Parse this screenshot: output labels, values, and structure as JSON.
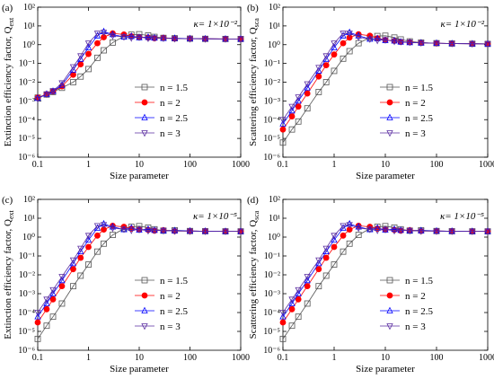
{
  "chart_data": [
    {
      "type": "line",
      "panel": "(a)",
      "annotation": "κ= 1×10⁻²",
      "xlabel": "Size parameter",
      "ylabel": "Extinction efficiency factor, Q",
      "ylabel_sub": "ext",
      "xlog": true,
      "ylog": true,
      "xlim": [
        0.1,
        1000
      ],
      "ylim": [
        1e-06,
        100
      ],
      "xticks": [
        0.1,
        1,
        10,
        100,
        1000
      ],
      "yticks": [
        {
          "value": 1e-06,
          "label": "10⁻⁶"
        },
        {
          "value": 1e-05,
          "label": "10⁻⁵"
        },
        {
          "value": 0.0001,
          "label": "10⁻⁴"
        },
        {
          "value": 0.001,
          "label": "10⁻³"
        },
        {
          "value": 0.01,
          "label": "10⁻²"
        },
        {
          "value": 0.1,
          "label": "10⁻¹"
        },
        {
          "value": 1,
          "label": "10⁰"
        },
        {
          "value": 10,
          "label": "10¹"
        },
        {
          "value": 100,
          "label": "10²"
        }
      ],
      "x": [
        0.1,
        0.15,
        0.2,
        0.3,
        0.5,
        0.7,
        1,
        1.5,
        2,
        3,
        5,
        7,
        10,
        15,
        20,
        30,
        50,
        100,
        200,
        500,
        1000
      ],
      "series": [
        {
          "name": "n = 1.5",
          "color": "#555555",
          "marker": "square",
          "values": [
            0.0015,
            0.0022,
            0.003,
            0.005,
            0.01,
            0.02,
            0.05,
            0.2,
            0.5,
            1.3,
            2.8,
            3.4,
            3.6,
            3.1,
            2.6,
            2.3,
            2.2,
            2.1,
            2.05,
            2.02,
            2.01
          ]
        },
        {
          "name": "n = 2",
          "color": "#ff0000",
          "marker": "circle",
          "values": [
            0.0015,
            0.0023,
            0.0032,
            0.006,
            0.025,
            0.09,
            0.32,
            1.2,
            2.5,
            4,
            3.5,
            2.8,
            2.5,
            2.4,
            2.2,
            2.3,
            2.1,
            2.1,
            2.05,
            2.02,
            2.01
          ]
        },
        {
          "name": "n = 2.5",
          "color": "#0000ff",
          "marker": "triangle-up",
          "values": [
            0.0014,
            0.0023,
            0.0033,
            0.007,
            0.045,
            0.17,
            0.7,
            3,
            5,
            3.5,
            2.6,
            2.8,
            2.4,
            2.5,
            2.3,
            2.2,
            2.2,
            2.1,
            2.05,
            2.02,
            2.01
          ]
        },
        {
          "name": "n = 3",
          "color": "#5a2ca0",
          "marker": "triangle-down",
          "values": [
            0.0013,
            0.0023,
            0.0035,
            0.009,
            0.065,
            0.25,
            1.2,
            4,
            4.5,
            3,
            2.6,
            2.3,
            2.5,
            2.2,
            2.3,
            2.2,
            2.1,
            2.05,
            2.03,
            2.02,
            2.01
          ]
        }
      ]
    },
    {
      "type": "line",
      "panel": "(b)",
      "annotation": "κ= 1×10⁻²",
      "xlabel": "Size parameter",
      "ylabel": "Scattering efficiency factor, Q",
      "ylabel_sub": "sca",
      "xlog": true,
      "ylog": true,
      "xlim": [
        0.1,
        1000
      ],
      "ylim": [
        1e-06,
        100
      ],
      "xticks": [
        0.1,
        1,
        10,
        100,
        1000
      ],
      "yticks": [
        {
          "value": 1e-06,
          "label": "10⁻⁶"
        },
        {
          "value": 1e-05,
          "label": "10⁻⁵"
        },
        {
          "value": 0.0001,
          "label": "10⁻⁴"
        },
        {
          "value": 0.001,
          "label": "10⁻³"
        },
        {
          "value": 0.01,
          "label": "10⁻²"
        },
        {
          "value": 0.1,
          "label": "10⁻¹"
        },
        {
          "value": 1,
          "label": "10⁰"
        },
        {
          "value": 10,
          "label": "10¹"
        },
        {
          "value": 100,
          "label": "10²"
        }
      ],
      "x": [
        0.1,
        0.15,
        0.2,
        0.3,
        0.5,
        0.7,
        1,
        1.5,
        2,
        3,
        5,
        7,
        10,
        15,
        20,
        30,
        50,
        100,
        200,
        500,
        1000
      ],
      "series": [
        {
          "name": "n = 1.5",
          "color": "#555555",
          "marker": "square",
          "values": [
            6e-06,
            3e-05,
            8e-05,
            0.0004,
            0.003,
            0.01,
            0.04,
            0.18,
            0.45,
            1.2,
            2.4,
            2.9,
            3,
            2.4,
            1.9,
            1.5,
            1.3,
            1.2,
            1.15,
            1.12,
            1.1
          ]
        },
        {
          "name": "n = 2",
          "color": "#ff0000",
          "marker": "circle",
          "values": [
            3e-05,
            0.00015,
            0.0005,
            0.0025,
            0.02,
            0.08,
            0.3,
            1.2,
            2.4,
            3.6,
            3,
            2.2,
            1.8,
            1.6,
            1.4,
            1.35,
            1.25,
            1.2,
            1.15,
            1.12,
            1.1
          ]
        },
        {
          "name": "n = 2.5",
          "color": "#0000ff",
          "marker": "triangle-up",
          "values": [
            6e-05,
            0.0003,
            0.001,
            0.005,
            0.04,
            0.17,
            0.7,
            3,
            4.5,
            3,
            2,
            2.1,
            1.7,
            1.6,
            1.4,
            1.3,
            1.25,
            1.2,
            1.15,
            1.12,
            1.1
          ]
        },
        {
          "name": "n = 3",
          "color": "#5a2ca0",
          "marker": "triangle-down",
          "values": [
            0.0001,
            0.0005,
            0.0016,
            0.008,
            0.06,
            0.25,
            1.2,
            4,
            4,
            2.5,
            2,
            1.7,
            1.8,
            1.5,
            1.45,
            1.35,
            1.25,
            1.2,
            1.15,
            1.12,
            1.1
          ]
        }
      ]
    },
    {
      "type": "line",
      "panel": "(c)",
      "annotation": "κ= 1×10⁻⁵",
      "xlabel": "Size parameter",
      "ylabel": "Extinction efficiency factor, Q",
      "ylabel_sub": "ext",
      "xlog": true,
      "ylog": true,
      "xlim": [
        0.1,
        1000
      ],
      "ylim": [
        1e-06,
        100
      ],
      "xticks": [
        0.1,
        1,
        10,
        100,
        1000
      ],
      "yticks": [
        {
          "value": 1e-06,
          "label": "10⁻⁶"
        },
        {
          "value": 1e-05,
          "label": "10⁻⁵"
        },
        {
          "value": 0.0001,
          "label": "10⁻⁴"
        },
        {
          "value": 0.001,
          "label": "10⁻³"
        },
        {
          "value": 0.01,
          "label": "10⁻²"
        },
        {
          "value": 0.1,
          "label": "10⁻¹"
        },
        {
          "value": 1,
          "label": "10⁰"
        },
        {
          "value": 10,
          "label": "10¹"
        },
        {
          "value": 100,
          "label": "10²"
        }
      ],
      "x": [
        0.1,
        0.15,
        0.2,
        0.3,
        0.5,
        0.7,
        1,
        1.5,
        2,
        3,
        5,
        7,
        10,
        15,
        20,
        30,
        50,
        100,
        200,
        500,
        1000
      ],
      "series": [
        {
          "name": "n = 1.5",
          "color": "#555555",
          "marker": "square",
          "values": [
            4e-06,
            2e-05,
            6e-05,
            0.0003,
            0.0025,
            0.009,
            0.035,
            0.17,
            0.45,
            1.3,
            2.8,
            3.5,
            3.8,
            3.2,
            2.6,
            2.2,
            2.3,
            2.1,
            2.05,
            2.02,
            2.01
          ]
        },
        {
          "name": "n = 2",
          "color": "#ff0000",
          "marker": "circle",
          "values": [
            3e-05,
            0.00015,
            0.0005,
            0.0025,
            0.02,
            0.08,
            0.3,
            1.2,
            2.5,
            4,
            3.5,
            2.8,
            2.5,
            2.4,
            2.2,
            2.3,
            2.1,
            2.1,
            2.05,
            2.02,
            2.01
          ]
        },
        {
          "name": "n = 2.5",
          "color": "#0000ff",
          "marker": "triangle-up",
          "values": [
            6e-05,
            0.0003,
            0.001,
            0.005,
            0.04,
            0.17,
            0.7,
            3,
            5,
            3.5,
            2.5,
            3,
            2.4,
            2.6,
            2.3,
            2.2,
            2.2,
            2.1,
            2.05,
            2.02,
            2.01
          ]
        },
        {
          "name": "n = 3",
          "color": "#5a2ca0",
          "marker": "triangle-down",
          "values": [
            0.0001,
            0.0005,
            0.0016,
            0.008,
            0.06,
            0.25,
            1.2,
            4,
            4.5,
            3,
            2.6,
            2.3,
            2.5,
            2.2,
            2.3,
            2.2,
            2.1,
            2.05,
            2.03,
            2.02,
            2.01
          ]
        }
      ]
    },
    {
      "type": "line",
      "panel": "(d)",
      "annotation": "κ= 1×10⁻⁵",
      "xlabel": "Size parameter",
      "ylabel": "Scattering efficiency factor, Q",
      "ylabel_sub": "sca",
      "xlog": true,
      "ylog": true,
      "xlim": [
        0.1,
        1000
      ],
      "ylim": [
        1e-06,
        100
      ],
      "xticks": [
        0.1,
        1,
        10,
        100,
        1000
      ],
      "yticks": [
        {
          "value": 1e-06,
          "label": "10⁻⁶"
        },
        {
          "value": 1e-05,
          "label": "10⁻⁵"
        },
        {
          "value": 0.0001,
          "label": "10⁻⁴"
        },
        {
          "value": 0.001,
          "label": "10⁻³"
        },
        {
          "value": 0.01,
          "label": "10⁻²"
        },
        {
          "value": 0.1,
          "label": "10⁻¹"
        },
        {
          "value": 1,
          "label": "10⁰"
        },
        {
          "value": 10,
          "label": "10¹"
        },
        {
          "value": 100,
          "label": "10²"
        }
      ],
      "x": [
        0.1,
        0.15,
        0.2,
        0.3,
        0.5,
        0.7,
        1,
        1.5,
        2,
        3,
        5,
        7,
        10,
        15,
        20,
        30,
        50,
        100,
        200,
        500,
        1000
      ],
      "series": [
        {
          "name": "n = 1.5",
          "color": "#555555",
          "marker": "square",
          "values": [
            4e-06,
            2e-05,
            6e-05,
            0.0003,
            0.0025,
            0.009,
            0.035,
            0.17,
            0.45,
            1.3,
            2.8,
            3.5,
            3.8,
            3.2,
            2.6,
            2.2,
            2.3,
            2.1,
            2.05,
            2.02,
            2.01
          ]
        },
        {
          "name": "n = 2",
          "color": "#ff0000",
          "marker": "circle",
          "values": [
            3e-05,
            0.00015,
            0.0005,
            0.0025,
            0.02,
            0.08,
            0.3,
            1.2,
            2.5,
            4,
            3.5,
            2.8,
            2.5,
            2.4,
            2.2,
            2.3,
            2.1,
            2.1,
            2.05,
            2.02,
            2.01
          ]
        },
        {
          "name": "n = 2.5",
          "color": "#0000ff",
          "marker": "triangle-up",
          "values": [
            6e-05,
            0.0003,
            0.001,
            0.005,
            0.04,
            0.17,
            0.7,
            3,
            5,
            3.5,
            2.5,
            3,
            2.4,
            2.6,
            2.3,
            2.2,
            2.2,
            2.1,
            2.05,
            2.02,
            2.01
          ]
        },
        {
          "name": "n = 3",
          "color": "#5a2ca0",
          "marker": "triangle-down",
          "values": [
            0.0001,
            0.0005,
            0.0016,
            0.008,
            0.06,
            0.25,
            1.2,
            4,
            4.5,
            3,
            2.6,
            2.3,
            2.5,
            2.2,
            2.3,
            2.2,
            2.1,
            2.05,
            2.03,
            2.02,
            2.01
          ]
        }
      ]
    }
  ]
}
